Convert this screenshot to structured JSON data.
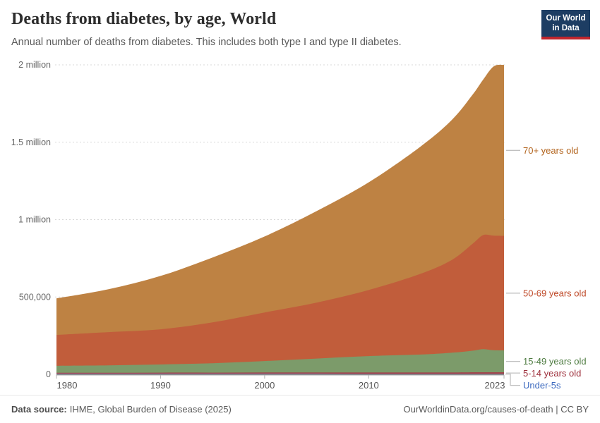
{
  "header": {
    "title": "Deaths from diabetes, by age, World",
    "subtitle": "Annual number of deaths from diabetes. This includes both type I and type II diabetes.",
    "logo": {
      "line1": "Our World",
      "line2": "in Data",
      "bg_color": "#1d3d63",
      "bar_color": "#c0262d"
    }
  },
  "footer": {
    "source_label": "Data source:",
    "source_text": "IHME, Global Burden of Disease (2025)",
    "credit": "OurWorldinData.org/causes-of-death | CC BY"
  },
  "chart_data": {
    "type": "area",
    "stacked": true,
    "title": "Deaths from diabetes, by age, World",
    "xlabel": "",
    "ylabel": "Annual number of deaths",
    "xlim": [
      1980,
      2023
    ],
    "ylim": [
      0,
      2000000
    ],
    "grid": "dashed-horizontal",
    "legend_position": "right-edge-labels",
    "x": [
      1980,
      1985,
      1990,
      1995,
      2000,
      2005,
      2010,
      2015,
      2018,
      2020,
      2021,
      2022,
      2023
    ],
    "series": [
      {
        "name": "Under-5s",
        "color": "#8489b2",
        "label_color": "#3a68be",
        "values": [
          5000,
          5000,
          5000,
          5000,
          5000,
          5000,
          4000,
          4000,
          4000,
          4000,
          4000,
          4000,
          4000
        ]
      },
      {
        "name": "5-14 years old",
        "color": "#a33e47",
        "label_color": "#9e2f3b",
        "values": [
          5000,
          5000,
          6000,
          6000,
          7000,
          7000,
          8000,
          8000,
          8000,
          9000,
          9000,
          9000,
          9000
        ]
      },
      {
        "name": "15-49 years old",
        "color": "#7c9b6a",
        "label_color": "#4c7a3f",
        "values": [
          45000,
          48000,
          53000,
          61000,
          74000,
          90000,
          106000,
          116000,
          128000,
          140000,
          150000,
          143000,
          142000
        ]
      },
      {
        "name": "50-69 years old",
        "color": "#c15d3b",
        "label_color": "#bf4928",
        "values": [
          200000,
          215000,
          227000,
          264000,
          314000,
          362000,
          427000,
          522000,
          600000,
          692000,
          737000,
          740000,
          740000
        ]
      },
      {
        "name": "70+ years old",
        "color": "#be8243",
        "label_color": "#b2631c",
        "values": [
          236000,
          277000,
          345000,
          419000,
          491000,
          591000,
          696000,
          823000,
          905000,
          964000,
          1005000,
          1094000,
          1105000
        ]
      }
    ],
    "xticks": [
      1980,
      1990,
      2000,
      2010,
      2023
    ],
    "yticks": [
      {
        "value": 0,
        "label": "0"
      },
      {
        "value": 500000,
        "label": "500,000"
      },
      {
        "value": 1000000,
        "label": "1 million"
      },
      {
        "value": 1500000,
        "label": "1.5 million"
      },
      {
        "value": 2000000,
        "label": "2 million"
      }
    ]
  }
}
